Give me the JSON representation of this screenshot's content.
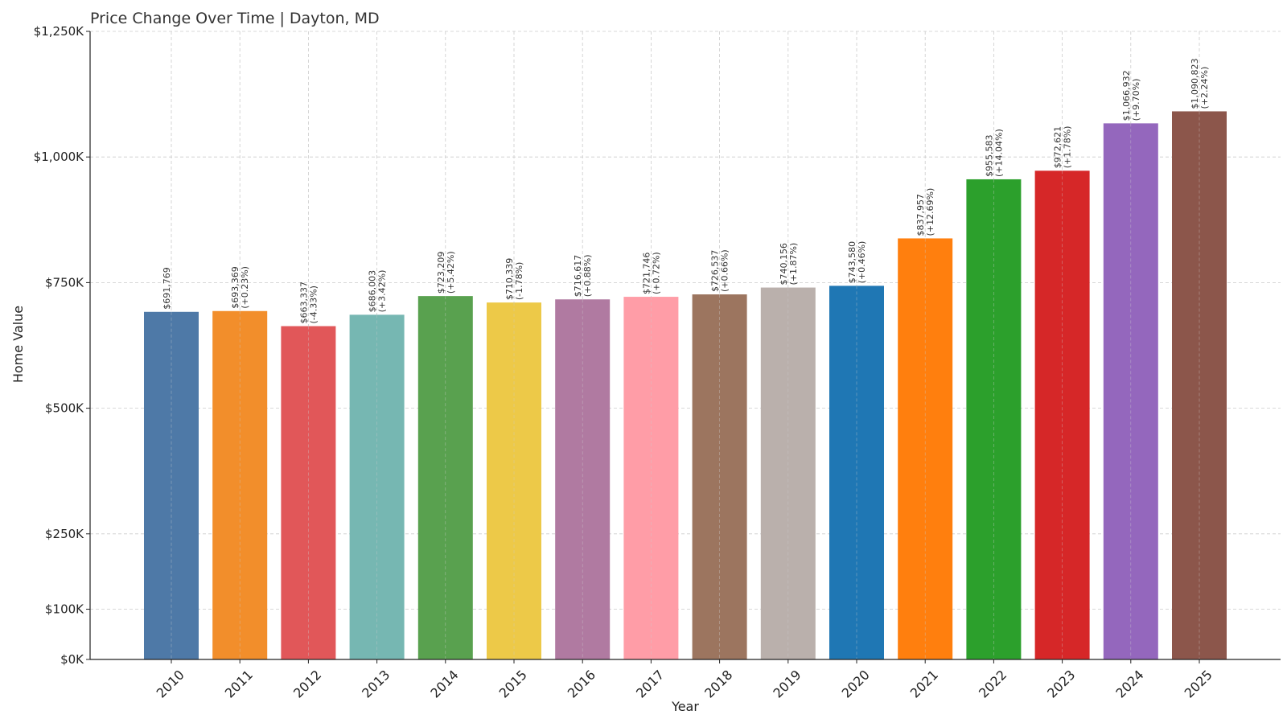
{
  "chart_data": {
    "type": "bar",
    "title": "Price Change Over Time | Dayton, MD",
    "xlabel": "Year",
    "ylabel": "Home Value",
    "categories": [
      "2010",
      "2011",
      "2012",
      "2013",
      "2014",
      "2015",
      "2016",
      "2017",
      "2018",
      "2019",
      "2020",
      "2021",
      "2022",
      "2023",
      "2024",
      "2025"
    ],
    "values": [
      691769,
      693369,
      663337,
      686003,
      723209,
      710339,
      716617,
      721746,
      726537,
      740156,
      743580,
      837957,
      955583,
      972621,
      1066932,
      1090823
    ],
    "value_labels": [
      "$691,769",
      "$693,369",
      "$663,337",
      "$686,003",
      "$723,209",
      "$710,339",
      "$716,617",
      "$721,746",
      "$726,537",
      "$740,156",
      "$743,580",
      "$837,957",
      "$955,583",
      "$972,621",
      "$1,066,932",
      "$1,090,823"
    ],
    "change_labels": [
      "",
      "(+0.23%)",
      "(-4.33%)",
      "(+3.42%)",
      "(+5.42%)",
      "(-1.78%)",
      "(+0.88%)",
      "(+0.72%)",
      "(+0.66%)",
      "(+1.87%)",
      "(+0.46%)",
      "(+12.69%)",
      "(+14.04%)",
      "(+1.78%)",
      "(+9.70%)",
      "(+2.24%)"
    ],
    "colors": [
      "#4e79a7",
      "#f28e2b",
      "#e15759",
      "#76b7b2",
      "#59a14f",
      "#edc948",
      "#b07aa1",
      "#ff9da7",
      "#9c755f",
      "#bab0ac",
      "#1f77b4",
      "#ff7f0e",
      "#2ca02c",
      "#d62728",
      "#9467bd",
      "#8c564b"
    ],
    "ylim": [
      0,
      1250000
    ],
    "yticks": [
      0,
      100000,
      250000,
      500000,
      750000,
      1000000,
      1250000
    ],
    "ytick_labels": [
      "$0K",
      "$100K",
      "$250K",
      "$500K",
      "$750K",
      "$1,000K",
      "$1,250K"
    ],
    "grid": true,
    "legend": "none"
  }
}
